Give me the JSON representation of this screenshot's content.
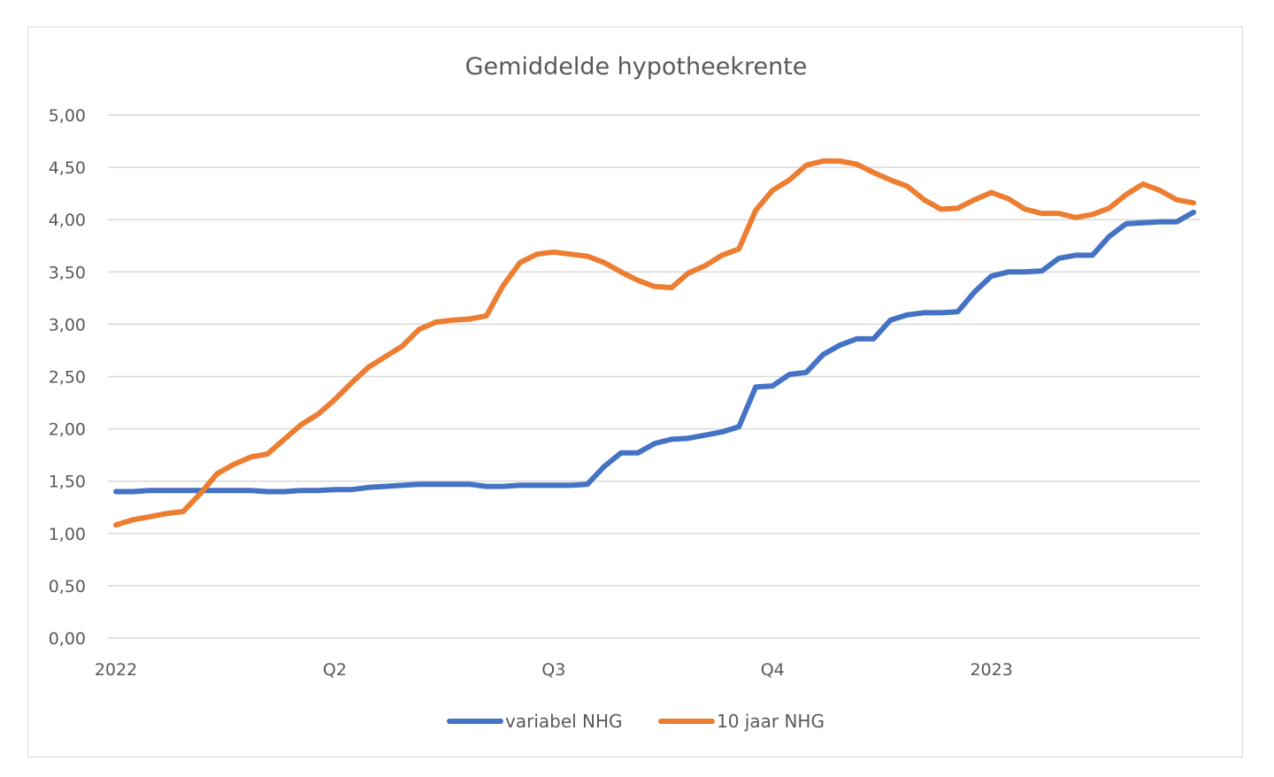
{
  "chart_data": {
    "type": "line",
    "title": "Gemiddelde hypotheekrente",
    "xlabel": "",
    "ylabel": "",
    "ylim": [
      0,
      5
    ],
    "y_ticks": [
      "0,00",
      "0,50",
      "1,00",
      "1,50",
      "2,00",
      "2,50",
      "3,00",
      "3,50",
      "4,00",
      "4,50",
      "5,00"
    ],
    "x_tick_labels": [
      "2022",
      "Q2",
      "Q3",
      "Q4",
      "2023"
    ],
    "x_tick_positions": [
      0,
      13,
      26,
      39,
      52
    ],
    "x_count": 65,
    "grid": true,
    "legend_position": "bottom",
    "series": [
      {
        "name": "variabel NHG",
        "color": "#4472c4",
        "values": [
          1.4,
          1.4,
          1.41,
          1.41,
          1.41,
          1.41,
          1.41,
          1.41,
          1.41,
          1.4,
          1.4,
          1.41,
          1.41,
          1.42,
          1.42,
          1.44,
          1.45,
          1.46,
          1.47,
          1.47,
          1.47,
          1.47,
          1.45,
          1.45,
          1.46,
          1.46,
          1.46,
          1.46,
          1.47,
          1.64,
          1.77,
          1.77,
          1.86,
          1.9,
          1.91,
          1.94,
          1.97,
          2.02,
          2.4,
          2.41,
          2.52,
          2.54,
          2.71,
          2.8,
          2.86,
          2.86,
          3.04,
          3.09,
          3.11,
          3.11,
          3.12,
          3.31,
          3.46,
          3.5,
          3.5,
          3.51,
          3.63,
          3.66,
          3.66,
          3.84,
          3.96,
          3.97,
          3.98,
          3.98,
          4.07
        ]
      },
      {
        "name": "10 jaar NHG",
        "color": "#ed7d31",
        "values": [
          1.08,
          1.13,
          1.16,
          1.19,
          1.21,
          1.38,
          1.57,
          1.66,
          1.73,
          1.76,
          1.9,
          2.04,
          2.14,
          2.28,
          2.44,
          2.59,
          2.69,
          2.79,
          2.95,
          3.02,
          3.04,
          3.05,
          3.08,
          3.37,
          3.59,
          3.67,
          3.69,
          3.67,
          3.65,
          3.59,
          3.5,
          3.42,
          3.36,
          3.35,
          3.49,
          3.56,
          3.66,
          3.72,
          4.09,
          4.28,
          4.38,
          4.52,
          4.56,
          4.56,
          4.53,
          4.45,
          4.38,
          4.32,
          4.19,
          4.1,
          4.11,
          4.19,
          4.26,
          4.2,
          4.1,
          4.06,
          4.06,
          4.02,
          4.05,
          4.11,
          4.24,
          4.34,
          4.28,
          4.19,
          4.16
        ]
      }
    ]
  }
}
